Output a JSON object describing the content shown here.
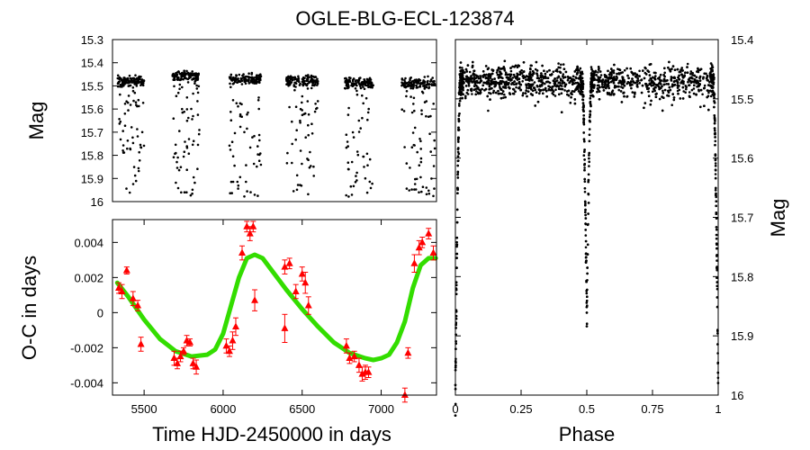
{
  "title": "OGLE-BLG-ECL-123874",
  "chart_data": [
    {
      "type": "scatter",
      "panel": "light-curve",
      "xlabel": "",
      "ylabel": "Mag",
      "xlim": [
        5300,
        7350
      ],
      "ylim": [
        16.0,
        15.3
      ],
      "yticks": [
        "15.3",
        "15.4",
        "15.5",
        "15.6",
        "15.7",
        "15.8",
        "15.9",
        "16"
      ],
      "seasons": [
        {
          "start": 5330,
          "end": 5500,
          "base_mag": 15.48
        },
        {
          "start": 5680,
          "end": 5850,
          "base_mag": 15.46
        },
        {
          "start": 6040,
          "end": 6240,
          "base_mag": 15.47
        },
        {
          "start": 6400,
          "end": 6600,
          "base_mag": 15.48
        },
        {
          "start": 6770,
          "end": 6950,
          "base_mag": 15.49
        },
        {
          "start": 7130,
          "end": 7340,
          "base_mag": 15.49
        }
      ],
      "eclipse_min_mag": 15.95,
      "grid": false,
      "color": "#000000"
    },
    {
      "type": "scatter",
      "panel": "o-c",
      "xlabel": "Time HJD-2450000 in days",
      "ylabel": "O-C in days",
      "xlim": [
        5300,
        7350
      ],
      "ylim": [
        -0.0047,
        0.0053
      ],
      "xticks": [
        "5500",
        "6000",
        "6500",
        "7000"
      ],
      "xtick_values": [
        5500,
        6000,
        6500,
        7000
      ],
      "yticks": [
        "-0.004",
        "-0.002",
        "0",
        "0.002",
        "0.004"
      ],
      "ytick_values": [
        -0.004,
        -0.002,
        0,
        0.002,
        0.004
      ],
      "series": [
        {
          "style": "triangles-with-errorbars",
          "color": "#ff0000",
          "points": [
            [
              5340,
              0.0014,
              0.0003
            ],
            [
              5360,
              0.0012,
              0.0004
            ],
            [
              5390,
              0.0024,
              0.0002
            ],
            [
              5430,
              0.0008,
              0.0004
            ],
            [
              5460,
              0.0004,
              0.0003
            ],
            [
              5480,
              -0.0018,
              0.0004
            ],
            [
              5690,
              -0.0026,
              0.0004
            ],
            [
              5710,
              -0.0029,
              0.0003
            ],
            [
              5730,
              -0.0025,
              0.0003
            ],
            [
              5750,
              -0.0022,
              0.0002
            ],
            [
              5770,
              -0.0016,
              0.0003
            ],
            [
              5790,
              -0.0017,
              0.0002
            ],
            [
              5810,
              -0.0029,
              0.0003
            ],
            [
              5830,
              -0.0031,
              0.0004
            ],
            [
              6020,
              -0.0019,
              0.0004
            ],
            [
              6040,
              -0.0022,
              0.0003
            ],
            [
              6060,
              -0.0016,
              0.0005
            ],
            [
              6080,
              -0.0008,
              0.0005
            ],
            [
              6120,
              0.0034,
              0.0004
            ],
            [
              6150,
              0.0049,
              0.0003
            ],
            [
              6170,
              0.0045,
              0.0004
            ],
            [
              6190,
              0.0049,
              0.0003
            ],
            [
              6200,
              0.0007,
              0.0006
            ],
            [
              6390,
              0.0026,
              0.0004
            ],
            [
              6420,
              0.0028,
              0.0003
            ],
            [
              6460,
              0.0012,
              0.0004
            ],
            [
              6500,
              0.0022,
              0.0004
            ],
            [
              6520,
              0.0017,
              0.0006
            ],
            [
              6540,
              0.0004,
              0.0005
            ],
            [
              6390,
              -0.0009,
              0.0008
            ],
            [
              6780,
              -0.0019,
              0.0004
            ],
            [
              6800,
              -0.0026,
              0.0003
            ],
            [
              6830,
              -0.0025,
              0.0003
            ],
            [
              6860,
              -0.003,
              0.0004
            ],
            [
              6880,
              -0.0035,
              0.0004
            ],
            [
              6900,
              -0.0034,
              0.0004
            ],
            [
              6920,
              -0.0034,
              0.0003
            ],
            [
              7150,
              -0.0047,
              0.0004
            ],
            [
              7170,
              -0.0023,
              0.0003
            ],
            [
              7210,
              0.0028,
              0.0005
            ],
            [
              7240,
              0.0037,
              0.0004
            ],
            [
              7260,
              0.004,
              0.0003
            ],
            [
              7300,
              0.0045,
              0.0003
            ],
            [
              7330,
              0.0034,
              0.0004
            ]
          ]
        },
        {
          "style": "model-curve",
          "color": "#33dd00",
          "points": [
            [
              5330,
              0.0017
            ],
            [
              5400,
              0.0009
            ],
            [
              5500,
              -0.0004
            ],
            [
              5600,
              -0.0015
            ],
            [
              5700,
              -0.0022
            ],
            [
              5800,
              -0.0025
            ],
            [
              5900,
              -0.0024
            ],
            [
              5950,
              -0.0021
            ],
            [
              6000,
              -0.0012
            ],
            [
              6050,
              0.0004
            ],
            [
              6100,
              0.002
            ],
            [
              6150,
              0.0031
            ],
            [
              6200,
              0.0033
            ],
            [
              6250,
              0.0031
            ],
            [
              6300,
              0.0025
            ],
            [
              6400,
              0.0013
            ],
            [
              6500,
              0.0002
            ],
            [
              6600,
              -0.0008
            ],
            [
              6700,
              -0.0017
            ],
            [
              6800,
              -0.0023
            ],
            [
              6900,
              -0.0026
            ],
            [
              6950,
              -0.0027
            ],
            [
              7000,
              -0.0026
            ],
            [
              7050,
              -0.0024
            ],
            [
              7100,
              -0.0017
            ],
            [
              7150,
              -0.0005
            ],
            [
              7200,
              0.0014
            ],
            [
              7250,
              0.0027
            ],
            [
              7300,
              0.0031
            ],
            [
              7345,
              0.0031
            ]
          ]
        }
      ],
      "grid": false
    },
    {
      "type": "scatter",
      "panel": "phased-light-curve",
      "xlabel": "Phase",
      "ylabel": "Mag",
      "xlim": [
        0,
        1
      ],
      "ylim": [
        16.0,
        15.4
      ],
      "xticks": [
        "0",
        "0.25",
        "0.5",
        "0.75",
        "1"
      ],
      "xtick_values": [
        0,
        0.25,
        0.5,
        0.75,
        1
      ],
      "yticks": [
        "15.4",
        "15.5",
        "15.6",
        "15.7",
        "15.8",
        "15.9",
        "16"
      ],
      "ytick_values": [
        15.4,
        15.5,
        15.6,
        15.7,
        15.8,
        15.9,
        16.0
      ],
      "yaxis_side": "right",
      "out_of_eclipse_mag": 15.47,
      "primary_eclipse": {
        "phase": 0.0,
        "depth_mag": 15.99
      },
      "secondary_eclipse": {
        "phase": 0.5,
        "depth_mag": 15.87
      },
      "grid": false,
      "color": "#000000"
    }
  ]
}
